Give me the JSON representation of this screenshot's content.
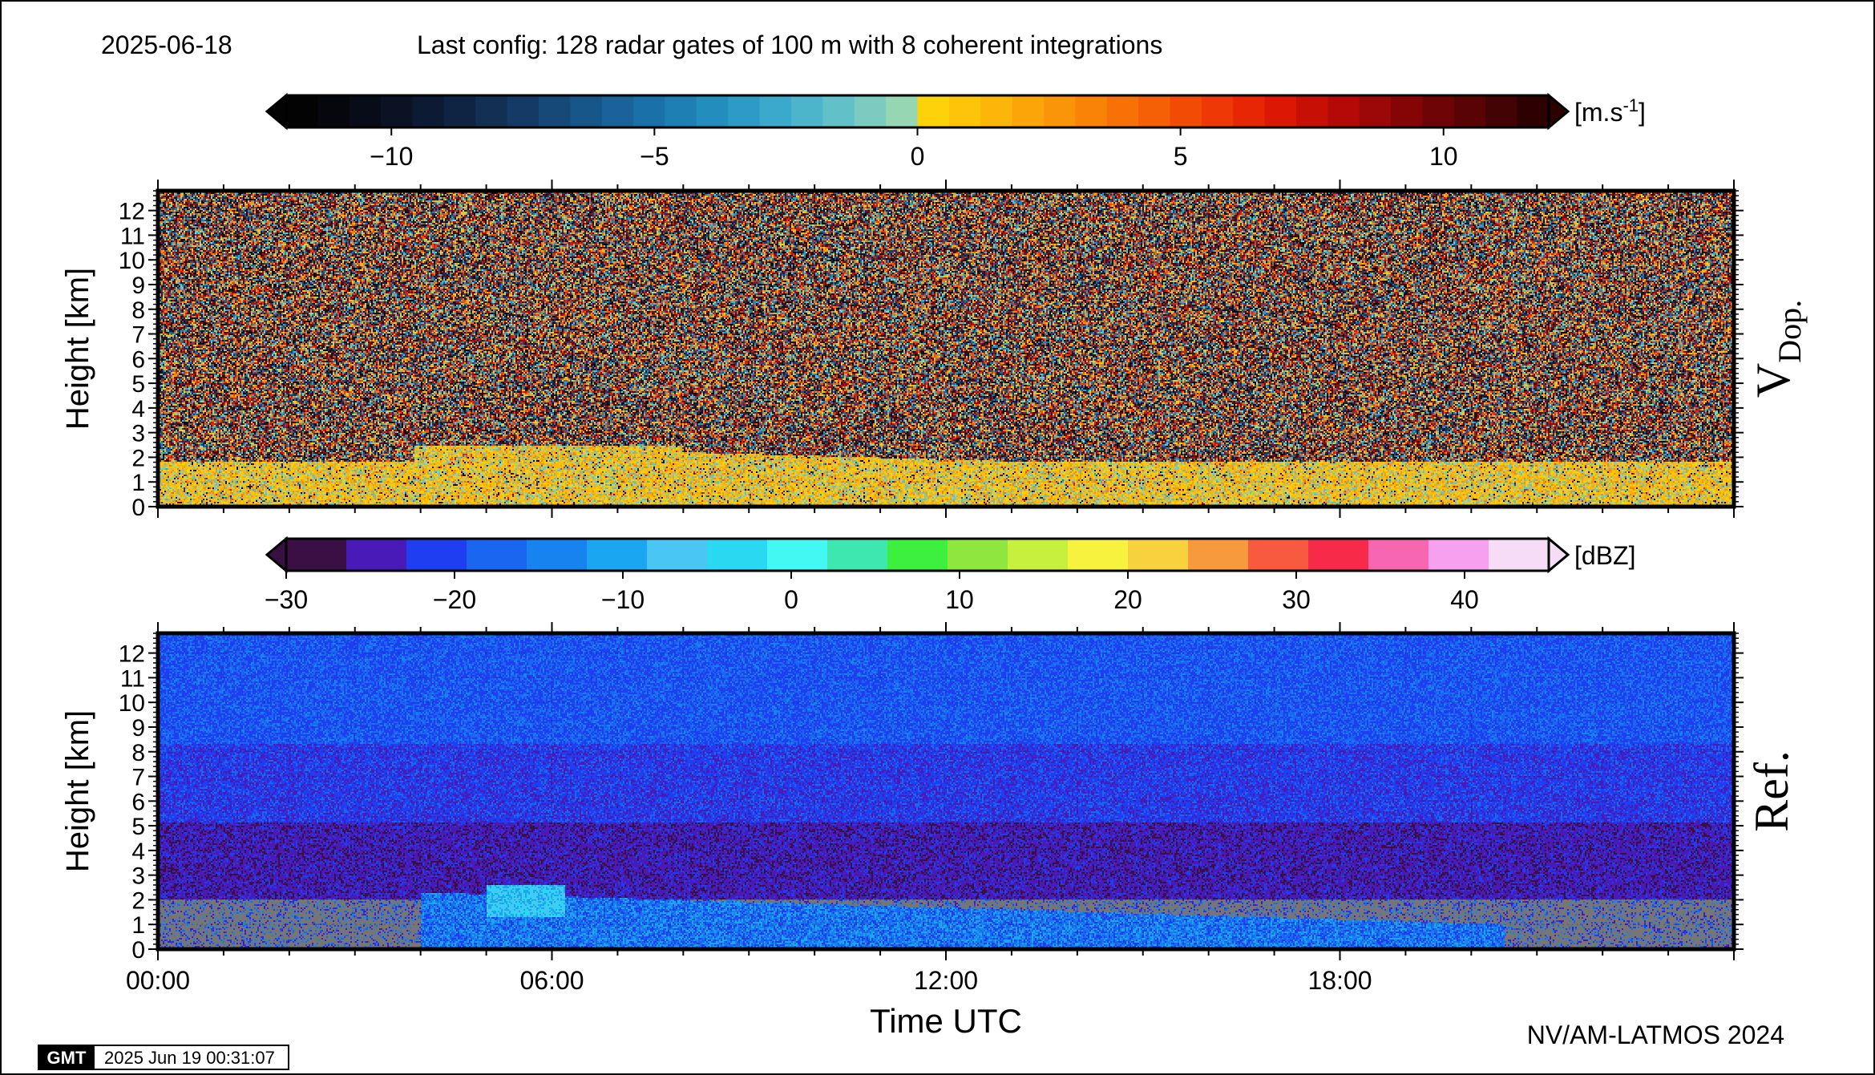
{
  "header": {
    "date": "2025-06-18",
    "config": "Last config: 128 radar gates of 100 m with 8 coherent integrations"
  },
  "footer": {
    "credit": "NV/AM-LATMOS 2024",
    "gmt_logo": "GMT",
    "timestamp": "2025 Jun 19 00:31:07"
  },
  "chart_data": [
    {
      "type": "heatmap",
      "title": "",
      "panel_label_main": "V",
      "panel_label_sub": "Dop.",
      "xlabel": "",
      "ylabel": "Height [km]",
      "x_range_hours": [
        0,
        24
      ],
      "ylim": [
        0,
        12.8
      ],
      "y_ticks": [
        0,
        1,
        2,
        3,
        4,
        5,
        6,
        7,
        8,
        9,
        10,
        11,
        12
      ],
      "colorbar": {
        "unit": "[m.s",
        "unit_sup": "-1",
        "unit_end": "]",
        "range": [
          -12,
          12
        ],
        "ticks": [
          -10,
          -5,
          0,
          5,
          10
        ],
        "tick_labels": [
          "−10",
          "−5",
          "0",
          "5",
          "10"
        ],
        "colors": [
          "#030303",
          "#05070d",
          "#080c18",
          "#0b1224",
          "#0d1a33",
          "#0f2442",
          "#122f54",
          "#143b66",
          "#164878",
          "#175689",
          "#19639a",
          "#1a70a8",
          "#1d7fb4",
          "#238ebe",
          "#2c9cc6",
          "#3aa9cb",
          "#4cb5cc",
          "#62c0c9",
          "#7bcbc1",
          "#97d6b3",
          "#fdd20a",
          "#fdc40a",
          "#fcb509",
          "#fba509",
          "#fa9408",
          "#f98307",
          "#f77107",
          "#f55f06",
          "#f24b05",
          "#ee3805",
          "#e72604",
          "#dc1704",
          "#c80f06",
          "#b30a07",
          "#9c0708",
          "#850507",
          "#6f0406",
          "#590305",
          "#430203",
          "#2d0102"
        ],
        "signal_field": "quantitative diverging velocity"
      },
      "notable_features": [
        {
          "desc": "boundary-layer signal",
          "t0": 0,
          "t1": 24,
          "top_km": 1.8
        },
        {
          "desc": "elevated layer",
          "t0": 3.9,
          "t1": 8,
          "top_km": 2.5
        },
        {
          "desc": "sloping top",
          "t0": 8,
          "t1": 20.2,
          "top_km_start": 2.2,
          "top_km_end": 1.3
        }
      ]
    },
    {
      "type": "heatmap",
      "title": "",
      "panel_label_main": "Ref.",
      "xlabel": "Time UTC",
      "ylabel": "Height [km]",
      "x_range_hours": [
        0,
        24
      ],
      "x_ticks": [
        0,
        6,
        12,
        18
      ],
      "x_tick_labels": [
        "00:00",
        "06:00",
        "12:00",
        "18:00"
      ],
      "ylim": [
        0,
        12.8
      ],
      "y_ticks": [
        0,
        1,
        2,
        3,
        4,
        5,
        6,
        7,
        8,
        9,
        10,
        11,
        12
      ],
      "colorbar": {
        "unit": "[dBZ]",
        "range": [
          -30,
          45
        ],
        "ticks": [
          -30,
          -20,
          -10,
          0,
          10,
          20,
          30,
          40
        ],
        "tick_labels": [
          "−30",
          "−20",
          "−10",
          "0",
          "10",
          "20",
          "30",
          "40"
        ],
        "colors": [
          "#3a0f44",
          "#4a1ab8",
          "#1f3ef2",
          "#1a66f0",
          "#1683ee",
          "#1aa6f0",
          "#4ac6f5",
          "#2bd8f2",
          "#43f7f2",
          "#3ee6b0",
          "#3ef03e",
          "#8ee63e",
          "#c7f03e",
          "#f7f23e",
          "#f7d23e",
          "#f79a3e",
          "#f75a3e",
          "#f72a4a",
          "#f766b0",
          "#f7a0f0",
          "#f7dcf7"
        ]
      },
      "notable_features": [
        {
          "desc": "grey low-level band",
          "t0": 0,
          "t1": 24,
          "top_km": 2.0
        },
        {
          "desc": "enhanced echo",
          "t0": 5,
          "t1": 6.2,
          "top_km": 2.6
        },
        {
          "desc": "sloping layer",
          "t0": 4,
          "t1": 20.5,
          "top_km_start": 2.3,
          "top_km_end": 1.0
        }
      ]
    }
  ]
}
